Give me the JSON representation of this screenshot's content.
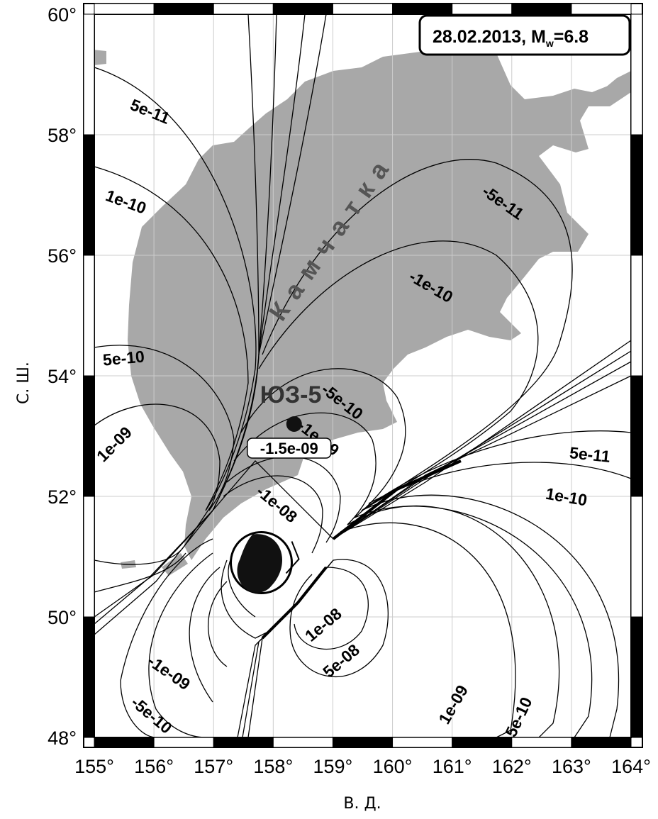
{
  "title": {
    "date_text": "28.02.2013, M",
    "magnitude_sub": "w",
    "magnitude_value": "=6.8"
  },
  "axes": {
    "ylabel": "С. Ш.",
    "xlabel": "В. Д.",
    "lon_ticks": [
      "155°",
      "156°",
      "157°",
      "158°",
      "159°",
      "160°",
      "161°",
      "162°",
      "163°",
      "164°"
    ],
    "lat_ticks": [
      "48°",
      "50°",
      "52°",
      "54°",
      "56°",
      "58°",
      "60°"
    ],
    "lon_range": [
      155,
      164
    ],
    "lat_range": [
      48,
      60
    ]
  },
  "region_label": "Камчатка",
  "station": {
    "name": "ЮЗ-5",
    "value": "-1.5e-09",
    "lon": 158.35,
    "lat": 53.2
  },
  "epicenter": {
    "lon": 157.8,
    "lat": 50.9
  },
  "contour_labels": [
    {
      "text": "5e-11",
      "lon": 155.9,
      "lat": 58.3,
      "rot": 22
    },
    {
      "text": "1e-10",
      "lon": 155.5,
      "lat": 56.8,
      "rot": 20
    },
    {
      "text": "5e-10",
      "lon": 155.5,
      "lat": 54.2,
      "rot": -5
    },
    {
      "text": "1e-09",
      "lon": 155.4,
      "lat": 52.8,
      "rot": -45
    },
    {
      "text": "-5e-11",
      "lon": 161.8,
      "lat": 56.8,
      "rot": 35
    },
    {
      "text": "-1e-10",
      "lon": 160.6,
      "lat": 55.4,
      "rot": 30
    },
    {
      "text": "-5e-10",
      "lon": 159.1,
      "lat": 53.5,
      "rot": 38
    },
    {
      "text": "-1e-09",
      "lon": 158.7,
      "lat": 52.9,
      "rot": 38
    },
    {
      "text": "-1e-08",
      "lon": 158.0,
      "lat": 51.8,
      "rot": 40
    },
    {
      "text": "5e-11",
      "lon": 163.3,
      "lat": 52.6,
      "rot": 6
    },
    {
      "text": "1e-10",
      "lon": 162.9,
      "lat": 51.9,
      "rot": 10
    },
    {
      "text": "1e-08",
      "lon": 158.9,
      "lat": 49.8,
      "rot": -40
    },
    {
      "text": "5e-08",
      "lon": 159.2,
      "lat": 49.2,
      "rot": -40
    },
    {
      "text": "1e-09",
      "lon": 161.1,
      "lat": 48.5,
      "rot": -60
    },
    {
      "text": "5e-10",
      "lon": 162.2,
      "lat": 48.3,
      "rot": -65
    },
    {
      "text": "-1e-09",
      "lon": 156.2,
      "lat": 49.0,
      "rot": 35
    },
    {
      "text": "-5e-10",
      "lon": 155.9,
      "lat": 48.3,
      "rot": 40
    }
  ],
  "colors": {
    "land": "#a8a8a8",
    "frame": "#000000",
    "grid": "#cccccc"
  }
}
